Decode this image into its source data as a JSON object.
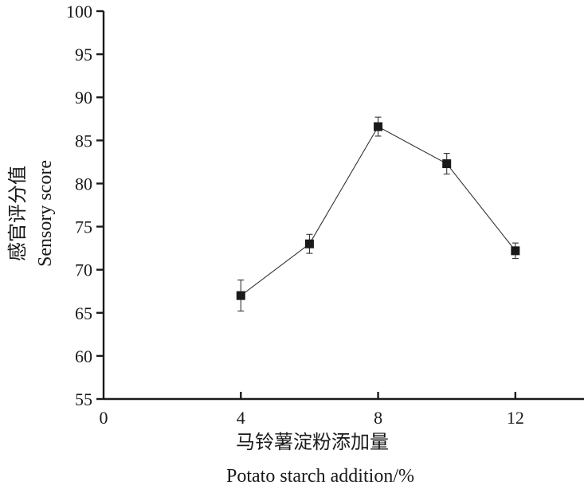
{
  "chart_data": {
    "type": "line",
    "x": [
      4,
      6,
      8,
      10,
      12
    ],
    "series": [
      {
        "values": [
          67.0,
          73.0,
          86.6,
          82.3,
          72.2
        ],
        "errors": [
          1.8,
          1.1,
          1.1,
          1.2,
          0.9
        ]
      }
    ],
    "xlim": [
      0,
      14
    ],
    "ylim": [
      55,
      100
    ],
    "x_ticks": [
      0,
      4,
      8,
      12
    ],
    "y_ticks": [
      55,
      60,
      65,
      70,
      75,
      80,
      85,
      90,
      95,
      100
    ],
    "x_tick_labels": [
      "0",
      "4",
      "8",
      "12"
    ],
    "y_tick_labels": [
      "55",
      "60",
      "65",
      "70",
      "75",
      "80",
      "85",
      "90",
      "95",
      "100"
    ],
    "xlabel_cn": "马铃薯淀粉添加量",
    "xlabel_en": "Potato starch addition/%",
    "ylabel_cn": "感官评分值",
    "ylabel_en": "Sensory score",
    "grid": false,
    "marker": "square",
    "colors": {
      "axis": "#1a1a1a",
      "line": "#333333",
      "marker": "#1a1a1a"
    }
  }
}
